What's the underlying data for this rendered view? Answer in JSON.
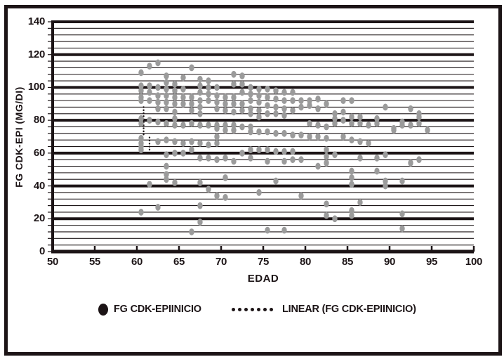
{
  "figure": {
    "background": "#ffffff",
    "border_color": "#1c1416",
    "axis_color": "#1c1416",
    "point_color": "#9b9b9b"
  },
  "chart_data": {
    "type": "scatter",
    "title": "",
    "xlabel": "EDAD",
    "ylabel": "FG CDK-EPI (MG/DI)",
    "xlim": [
      50,
      100
    ],
    "ylim": [
      0,
      140
    ],
    "x_ticks": [
      50,
      55,
      60,
      65,
      70,
      75,
      80,
      85,
      90,
      95,
      100
    ],
    "y_ticks": [
      0,
      20,
      40,
      60,
      80,
      100,
      120,
      140
    ],
    "grid": "horizontal",
    "minor_grid_step": 4,
    "major_grid_step": 20,
    "legend_position": "bottom",
    "series": [
      {
        "name": "FG CDK-EPIINICIO",
        "marker": "ellipse",
        "color": "#9b9b9b",
        "points": [
          [
            60.5,
            109
          ],
          [
            60.5,
            101
          ],
          [
            60.5,
            98
          ],
          [
            60.5,
            94
          ],
          [
            60.5,
            92
          ],
          [
            60.5,
            81
          ],
          [
            60.5,
            78
          ],
          [
            60.5,
            69
          ],
          [
            60.5,
            66
          ],
          [
            60.5,
            64
          ],
          [
            60.5,
            62
          ],
          [
            60.5,
            24
          ],
          [
            61.5,
            113
          ],
          [
            61.5,
            101
          ],
          [
            61.5,
            97
          ],
          [
            61.5,
            92
          ],
          [
            61.5,
            80
          ],
          [
            61.5,
            41
          ],
          [
            62.5,
            115
          ],
          [
            62.5,
            100
          ],
          [
            62.5,
            95
          ],
          [
            62.5,
            91
          ],
          [
            62.5,
            87
          ],
          [
            62.5,
            79
          ],
          [
            62.5,
            67
          ],
          [
            62.5,
            27
          ],
          [
            63.5,
            107
          ],
          [
            63.5,
            103
          ],
          [
            63.5,
            99
          ],
          [
            63.5,
            95
          ],
          [
            63.5,
            91
          ],
          [
            63.5,
            87
          ],
          [
            63.5,
            78
          ],
          [
            63.5,
            68
          ],
          [
            63.5,
            59
          ],
          [
            63.5,
            52
          ],
          [
            63.5,
            47
          ],
          [
            63.5,
            44
          ],
          [
            64.5,
            102
          ],
          [
            64.5,
            98
          ],
          [
            64.5,
            94
          ],
          [
            64.5,
            90
          ],
          [
            64.5,
            85
          ],
          [
            64.5,
            81
          ],
          [
            64.5,
            77
          ],
          [
            64.5,
            67
          ],
          [
            64.5,
            60
          ],
          [
            64.5,
            42
          ],
          [
            65.5,
            106
          ],
          [
            65.5,
            99
          ],
          [
            65.5,
            94
          ],
          [
            65.5,
            90
          ],
          [
            65.5,
            77
          ],
          [
            65.5,
            66
          ],
          [
            65.5,
            60
          ],
          [
            66.5,
            112
          ],
          [
            66.5,
            94
          ],
          [
            66.5,
            90
          ],
          [
            66.5,
            86
          ],
          [
            66.5,
            78
          ],
          [
            66.5,
            67
          ],
          [
            66.5,
            62
          ],
          [
            66.5,
            12
          ],
          [
            67.5,
            105
          ],
          [
            67.5,
            101
          ],
          [
            67.5,
            97
          ],
          [
            67.5,
            92
          ],
          [
            67.5,
            88
          ],
          [
            67.5,
            84
          ],
          [
            67.5,
            77
          ],
          [
            67.5,
            66
          ],
          [
            67.5,
            57
          ],
          [
            67.5,
            42
          ],
          [
            67.5,
            28
          ],
          [
            67.5,
            18
          ],
          [
            68.5,
            104
          ],
          [
            68.5,
            100
          ],
          [
            68.5,
            96
          ],
          [
            68.5,
            92
          ],
          [
            68.5,
            77
          ],
          [
            68.5,
            65
          ],
          [
            68.5,
            57
          ],
          [
            68.5,
            38
          ],
          [
            69.5,
            100
          ],
          [
            69.5,
            95
          ],
          [
            69.5,
            91
          ],
          [
            69.5,
            87
          ],
          [
            69.5,
            77
          ],
          [
            69.5,
            75
          ],
          [
            69.5,
            70
          ],
          [
            69.5,
            66
          ],
          [
            69.5,
            56
          ],
          [
            69.5,
            34
          ],
          [
            70.5,
            94
          ],
          [
            70.5,
            90
          ],
          [
            70.5,
            86
          ],
          [
            70.5,
            77
          ],
          [
            70.5,
            74
          ],
          [
            70.5,
            57
          ],
          [
            70.5,
            45
          ],
          [
            70.5,
            33
          ],
          [
            71.5,
            108
          ],
          [
            71.5,
            102
          ],
          [
            71.5,
            94
          ],
          [
            71.5,
            90
          ],
          [
            71.5,
            85
          ],
          [
            71.5,
            77
          ],
          [
            71.5,
            74
          ],
          [
            71.5,
            55
          ],
          [
            72.5,
            107
          ],
          [
            72.5,
            102
          ],
          [
            72.5,
            97
          ],
          [
            72.5,
            90
          ],
          [
            72.5,
            86
          ],
          [
            72.5,
            76
          ],
          [
            72.5,
            60
          ],
          [
            73.5,
            100
          ],
          [
            73.5,
            96
          ],
          [
            73.5,
            92
          ],
          [
            73.5,
            87
          ],
          [
            73.5,
            84
          ],
          [
            73.5,
            76
          ],
          [
            73.5,
            73
          ],
          [
            73.5,
            62
          ],
          [
            73.5,
            57
          ],
          [
            74.5,
            99
          ],
          [
            74.5,
            95
          ],
          [
            74.5,
            91
          ],
          [
            74.5,
            86
          ],
          [
            74.5,
            82
          ],
          [
            74.5,
            73
          ],
          [
            74.5,
            62
          ],
          [
            74.5,
            36
          ],
          [
            75.5,
            99
          ],
          [
            75.5,
            94
          ],
          [
            75.5,
            89
          ],
          [
            75.5,
            84
          ],
          [
            75.5,
            73
          ],
          [
            75.5,
            62
          ],
          [
            75.5,
            55
          ],
          [
            75.5,
            13
          ],
          [
            76.5,
            98
          ],
          [
            76.5,
            93
          ],
          [
            76.5,
            88
          ],
          [
            76.5,
            84
          ],
          [
            76.5,
            72
          ],
          [
            76.5,
            61
          ],
          [
            76.5,
            43
          ],
          [
            77.5,
            97
          ],
          [
            77.5,
            92
          ],
          [
            77.5,
            87
          ],
          [
            77.5,
            83
          ],
          [
            77.5,
            72
          ],
          [
            77.5,
            61
          ],
          [
            77.5,
            55
          ],
          [
            77.5,
            13
          ],
          [
            78.5,
            97
          ],
          [
            78.5,
            92
          ],
          [
            78.5,
            86
          ],
          [
            78.5,
            71
          ],
          [
            78.5,
            61
          ],
          [
            78.5,
            56
          ],
          [
            79.5,
            92
          ],
          [
            79.5,
            88
          ],
          [
            79.5,
            71
          ],
          [
            79.5,
            56
          ],
          [
            79.5,
            34
          ],
          [
            80.5,
            92
          ],
          [
            80.5,
            89
          ],
          [
            80.5,
            78
          ],
          [
            80.5,
            70
          ],
          [
            81.5,
            93
          ],
          [
            81.5,
            87
          ],
          [
            81.5,
            77
          ],
          [
            81.5,
            70
          ],
          [
            81.5,
            52
          ],
          [
            82.5,
            90
          ],
          [
            82.5,
            76
          ],
          [
            82.5,
            69
          ],
          [
            82.5,
            62
          ],
          [
            82.5,
            58
          ],
          [
            82.5,
            54
          ],
          [
            82.5,
            29
          ],
          [
            82.5,
            22
          ],
          [
            83.5,
            84
          ],
          [
            83.5,
            81
          ],
          [
            83.5,
            78
          ],
          [
            83.5,
            59
          ],
          [
            83.5,
            20
          ],
          [
            84.5,
            92
          ],
          [
            84.5,
            85
          ],
          [
            84.5,
            80
          ],
          [
            84.5,
            70
          ],
          [
            85.5,
            92
          ],
          [
            85.5,
            82
          ],
          [
            85.5,
            78
          ],
          [
            85.5,
            68
          ],
          [
            85.5,
            49
          ],
          [
            85.5,
            45
          ],
          [
            85.5,
            41
          ],
          [
            85.5,
            25
          ],
          [
            85.5,
            22
          ],
          [
            86.5,
            82
          ],
          [
            86.5,
            78
          ],
          [
            86.5,
            67
          ],
          [
            86.5,
            57
          ],
          [
            86.5,
            30
          ],
          [
            87.5,
            77
          ],
          [
            87.5,
            66
          ],
          [
            88.5,
            81
          ],
          [
            88.5,
            78
          ],
          [
            88.5,
            57
          ],
          [
            88.5,
            49
          ],
          [
            89.5,
            88
          ],
          [
            89.5,
            59
          ],
          [
            89.5,
            43
          ],
          [
            89.5,
            40
          ],
          [
            90.5,
            75
          ],
          [
            90.5,
            74
          ],
          [
            91.5,
            79
          ],
          [
            91.5,
            77
          ],
          [
            91.5,
            43
          ],
          [
            91.5,
            23
          ],
          [
            91.5,
            14
          ],
          [
            92.5,
            87
          ],
          [
            92.5,
            77
          ],
          [
            92.5,
            54
          ],
          [
            93.5,
            84
          ],
          [
            93.5,
            82
          ],
          [
            93.5,
            78
          ],
          [
            93.5,
            56
          ],
          [
            94.5,
            74
          ]
        ]
      }
    ],
    "trend": {
      "name": "LINEAR (FG CDK-EPIINICIO)",
      "style": "dotted",
      "color": "#1c1416",
      "segments": [
        [
          [
            60.8,
            88
          ],
          [
            60.8,
            71
          ]
        ],
        [
          [
            61.5,
            69.5
          ],
          [
            61.5,
            60.5
          ]
        ]
      ]
    }
  },
  "legend": {
    "items": [
      {
        "marker": "filled-circle",
        "label": "FG CDK-EPIINICIO"
      },
      {
        "marker": "dotted-line",
        "label": "LINEAR (FG CDK-EPIINICIO)"
      }
    ]
  }
}
